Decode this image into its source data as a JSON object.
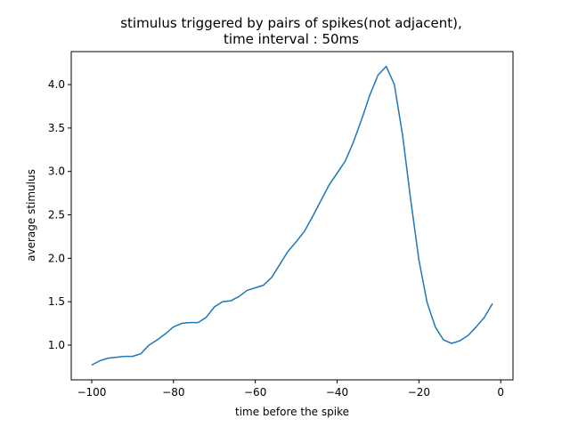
{
  "chart_data": {
    "type": "line",
    "title_line1": "stimulus triggered by pairs of spikes(not adjacent),",
    "title_line2": "time interval : 50ms",
    "xlabel": "time before the spike",
    "ylabel": "average stimulus",
    "xlim": [
      -105,
      3
    ],
    "ylim": [
      0.6,
      4.38
    ],
    "xticks": [
      -100,
      -80,
      -60,
      -40,
      -20,
      0
    ],
    "xtick_labels": [
      "−100",
      "−80",
      "−60",
      "−40",
      "−20",
      "0"
    ],
    "yticks": [
      1.0,
      1.5,
      2.0,
      2.5,
      3.0,
      3.5,
      4.0
    ],
    "ytick_labels": [
      "1.0",
      "1.5",
      "2.0",
      "2.5",
      "3.0",
      "3.5",
      "4.0"
    ],
    "grid": false,
    "series": [
      {
        "color": "#1f77b4",
        "x": [
          -100,
          -98,
          -96,
          -94,
          -92,
          -90,
          -88,
          -86,
          -84,
          -82,
          -80,
          -78,
          -76,
          -74,
          -72,
          -70,
          -68,
          -66,
          -64,
          -62,
          -60,
          -58,
          -56,
          -54,
          -52,
          -50,
          -48,
          -46,
          -44,
          -42,
          -40,
          -38,
          -36,
          -34,
          -32,
          -30,
          -28,
          -26,
          -24,
          -22,
          -20,
          -18,
          -16,
          -14,
          -12,
          -10,
          -8,
          -6,
          -4,
          -2
        ],
        "y": [
          0.77,
          0.82,
          0.85,
          0.86,
          0.87,
          0.87,
          0.9,
          1.0,
          1.06,
          1.13,
          1.21,
          1.25,
          1.26,
          1.26,
          1.32,
          1.44,
          1.5,
          1.51,
          1.56,
          1.63,
          1.66,
          1.69,
          1.78,
          1.93,
          2.08,
          2.19,
          2.31,
          2.48,
          2.66,
          2.84,
          2.98,
          3.12,
          3.34,
          3.6,
          3.88,
          4.11,
          4.21,
          4.0,
          3.42,
          2.67,
          1.98,
          1.49,
          1.21,
          1.06,
          1.02,
          1.05,
          1.11,
          1.21,
          1.32,
          1.48
        ]
      }
    ]
  }
}
